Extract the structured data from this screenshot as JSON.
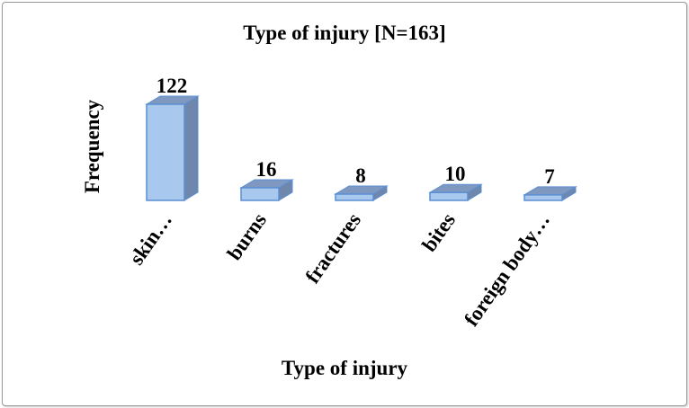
{
  "chart_data": {
    "type": "bar",
    "style": "3d-column",
    "title": "Type of injury [N=163]",
    "xlabel": "Type of injury",
    "ylabel": "Frequency",
    "categories": [
      "skin…",
      "burns",
      "fractures",
      "bites",
      "foreign body…"
    ],
    "values": [
      122,
      16,
      8,
      10,
      7
    ],
    "data_labels": [
      "122",
      "16",
      "8",
      "10",
      "7"
    ],
    "grid": false,
    "legend": "none",
    "colors": {
      "front": "#a9c8ee",
      "top": "#7f98c0",
      "side": "#6f86ad",
      "edge": "#5b8fd4"
    }
  }
}
